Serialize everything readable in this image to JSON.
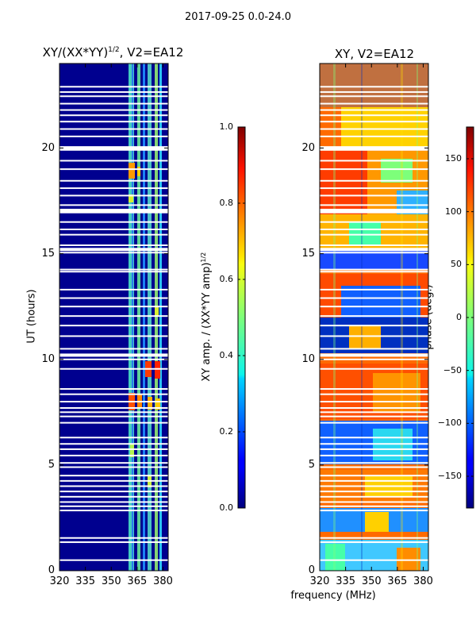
{
  "suptitle": "2017-09-25 0.0-24.0",
  "chart_data": [
    {
      "type": "heatmap",
      "title": "XY/(XX*YY)^1/2, V2=EA12",
      "title_main": "XY/(XX*YY)",
      "title_sup": "1/2",
      "title_tail": ", V2=EA12",
      "xlabel": "",
      "ylabel": "UT (hours)",
      "xlim": [
        320,
        383
      ],
      "ylim": [
        0,
        24
      ],
      "xticks": [
        320,
        335,
        350,
        365,
        380
      ],
      "yticks": [
        0,
        5,
        10,
        15,
        20
      ],
      "colorbar": {
        "label": "XY amp. / (XX*YY amp)^1/2",
        "label_main": "XY amp. / (XX*YY amp)",
        "label_sup": "1/2",
        "min": 0.0,
        "max": 1.0,
        "ticks": [
          "0.0",
          "0.2",
          "0.4",
          "0.6",
          "0.8",
          "1.0"
        ]
      }
    },
    {
      "type": "heatmap",
      "title": "XY, V2=EA12",
      "xlabel": "frequency (MHz)",
      "ylabel": "",
      "xlim": [
        320,
        383
      ],
      "ylim": [
        0,
        24
      ],
      "xticks": [
        320,
        335,
        350,
        365,
        380
      ],
      "yticks": [
        0,
        5,
        10,
        15,
        20
      ],
      "colorbar": {
        "label": "phase (deg.)",
        "min": -180,
        "max": 180,
        "ticks": [
          "150",
          "100",
          "50",
          "0",
          "−50",
          "−100",
          "−150"
        ]
      }
    }
  ],
  "data_gaps_hours": [
    0.5,
    1.35,
    1.55,
    2.85,
    3.05,
    3.25,
    3.5,
    3.75,
    4.0,
    4.25,
    4.5,
    4.9,
    5.1,
    5.45,
    5.75,
    6.0,
    6.3,
    7.0,
    7.3,
    7.5,
    7.7,
    8.0,
    8.35,
    8.6,
    9.55,
    10.0,
    10.2,
    10.5,
    11.1,
    11.6,
    12.05,
    12.5,
    12.9,
    13.3,
    14.15,
    14.25,
    15.05,
    15.2,
    15.4,
    15.9,
    16.15,
    16.5,
    16.95,
    17.05,
    17.3,
    17.75,
    18.1,
    18.45,
    19.0,
    19.4,
    19.95,
    20.05,
    20.55,
    20.9,
    21.25,
    21.55,
    21.8,
    22.1,
    22.45,
    22.65,
    22.9
  ]
}
